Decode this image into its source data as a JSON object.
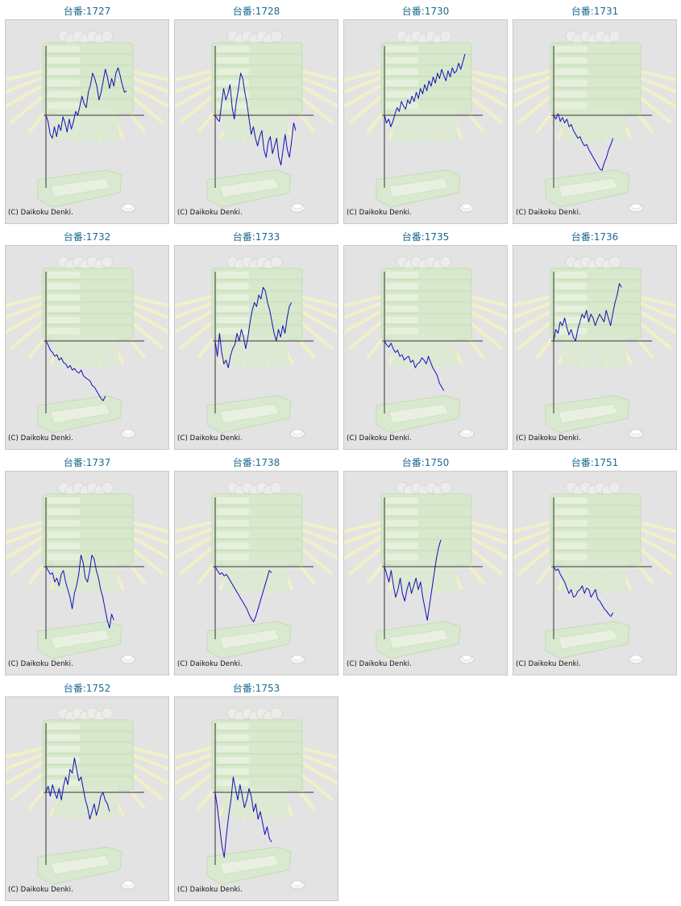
{
  "copyright": "(C) Daikoku Denki.",
  "colors": {
    "line": "#1010b8",
    "axis": "#333333",
    "label": "#1a6a8f",
    "background": "#e3e3e3"
  },
  "chart_data": [
    {
      "type": "line",
      "title": "台番:1727",
      "values": [
        0,
        -8,
        -25,
        -30,
        -15,
        -28,
        -12,
        -20,
        -2,
        -10,
        -22,
        -5,
        -18,
        -8,
        5,
        0,
        12,
        25,
        15,
        10,
        30,
        40,
        55,
        48,
        38,
        20,
        30,
        45,
        60,
        50,
        35,
        48,
        38,
        55,
        62,
        52,
        40,
        30,
        32
      ]
    },
    {
      "type": "line",
      "title": "台番:1728",
      "values": [
        0,
        -5,
        -8,
        15,
        35,
        20,
        28,
        40,
        10,
        -5,
        18,
        35,
        55,
        48,
        30,
        15,
        -5,
        -25,
        -15,
        -30,
        -40,
        -28,
        -20,
        -45,
        -55,
        -35,
        -28,
        -50,
        -40,
        -30,
        -55,
        -65,
        -45,
        -25,
        -45,
        -55,
        -35,
        -10,
        -20
      ]
    },
    {
      "type": "line",
      "title": "台番:1730",
      "values": [
        0,
        -10,
        -5,
        -15,
        -8,
        2,
        10,
        5,
        18,
        12,
        8,
        20,
        15,
        25,
        18,
        30,
        22,
        35,
        28,
        40,
        32,
        45,
        38,
        50,
        42,
        55,
        48,
        60,
        52,
        45,
        58,
        50,
        62,
        55,
        58,
        68,
        60,
        70,
        80
      ]
    },
    {
      "type": "line",
      "title": "台番:1731",
      "values": [
        0,
        -5,
        2,
        -8,
        -3,
        -10,
        -5,
        -15,
        -12,
        -20,
        -25,
        -30,
        -28,
        -35,
        -40,
        -38,
        -45,
        -50,
        -55,
        -60,
        -65,
        -70,
        -72,
        -62,
        -55,
        -45,
        -38,
        -30
      ]
    },
    {
      "type": "line",
      "title": "台番:1732",
      "values": [
        0,
        -5,
        -12,
        -15,
        -20,
        -18,
        -25,
        -22,
        -28,
        -30,
        -35,
        -32,
        -38,
        -36,
        -40,
        -42,
        -38,
        -45,
        -48,
        -50,
        -52,
        -58,
        -60,
        -65,
        -70,
        -75,
        -78,
        -72
      ]
    },
    {
      "type": "line",
      "title": "台番:1733",
      "values": [
        0,
        -20,
        10,
        -15,
        -30,
        -25,
        -35,
        -20,
        -10,
        -5,
        10,
        0,
        15,
        5,
        -10,
        5,
        25,
        40,
        50,
        45,
        60,
        55,
        70,
        65,
        50,
        40,
        25,
        10,
        0,
        15,
        5,
        20,
        10,
        30,
        45,
        50
      ]
    },
    {
      "type": "line",
      "title": "台番:1735",
      "values": [
        0,
        -5,
        -8,
        -3,
        -10,
        -15,
        -12,
        -20,
        -18,
        -25,
        -22,
        -20,
        -28,
        -25,
        -35,
        -30,
        -28,
        -22,
        -25,
        -30,
        -20,
        -28,
        -35,
        -40,
        -45,
        -55,
        -60,
        -65
      ]
    },
    {
      "type": "line",
      "title": "台番:1736",
      "values": [
        0,
        15,
        10,
        25,
        20,
        30,
        18,
        8,
        15,
        5,
        0,
        15,
        25,
        35,
        30,
        40,
        25,
        35,
        30,
        20,
        28,
        35,
        30,
        25,
        40,
        30,
        20,
        35,
        50,
        60,
        75,
        70
      ]
    },
    {
      "type": "line",
      "title": "台番:1737",
      "values": [
        0,
        -5,
        -10,
        -8,
        -20,
        -15,
        -25,
        -10,
        -5,
        -20,
        -30,
        -40,
        -55,
        -35,
        -25,
        -10,
        15,
        5,
        -15,
        -20,
        -5,
        15,
        10,
        -5,
        -15,
        -30,
        -40,
        -55,
        -70,
        -80,
        -62,
        -70
      ]
    },
    {
      "type": "line",
      "title": "台番:1738",
      "values": [
        0,
        -5,
        -10,
        -8,
        -12,
        -10,
        -15,
        -20,
        -25,
        -30,
        -35,
        -40,
        -45,
        -50,
        -55,
        -62,
        -68,
        -72,
        -65,
        -55,
        -45,
        -35,
        -25,
        -15,
        -5,
        -8
      ]
    },
    {
      "type": "line",
      "title": "台番:1750",
      "values": [
        0,
        -10,
        -20,
        -5,
        -25,
        -40,
        -30,
        -15,
        -35,
        -45,
        -30,
        -20,
        -35,
        -25,
        -15,
        -30,
        -20,
        -40,
        -55,
        -70,
        -50,
        -30,
        -10,
        10,
        25,
        35
      ]
    },
    {
      "type": "line",
      "title": "台番:1751",
      "values": [
        0,
        -5,
        -3,
        -10,
        -15,
        -20,
        -28,
        -35,
        -30,
        -40,
        -38,
        -32,
        -30,
        -25,
        -35,
        -28,
        -30,
        -40,
        -35,
        -30,
        -42,
        -45,
        -50,
        -55,
        -58,
        -62,
        -65,
        -60
      ]
    },
    {
      "type": "line",
      "title": "台番:1752",
      "values": [
        0,
        8,
        -5,
        10,
        0,
        -8,
        5,
        -10,
        8,
        20,
        10,
        30,
        25,
        45,
        30,
        15,
        20,
        5,
        -10,
        -20,
        -35,
        -25,
        -15,
        -30,
        -20,
        -5,
        0,
        -10,
        -15,
        -25
      ]
    },
    {
      "type": "line",
      "title": "台番:1753",
      "values": [
        0,
        -20,
        -45,
        -70,
        -85,
        -55,
        -30,
        -10,
        20,
        5,
        -10,
        10,
        -5,
        -20,
        -10,
        5,
        -5,
        -25,
        -15,
        -35,
        -25,
        -40,
        -55,
        -45,
        -60,
        -65
      ]
    }
  ]
}
